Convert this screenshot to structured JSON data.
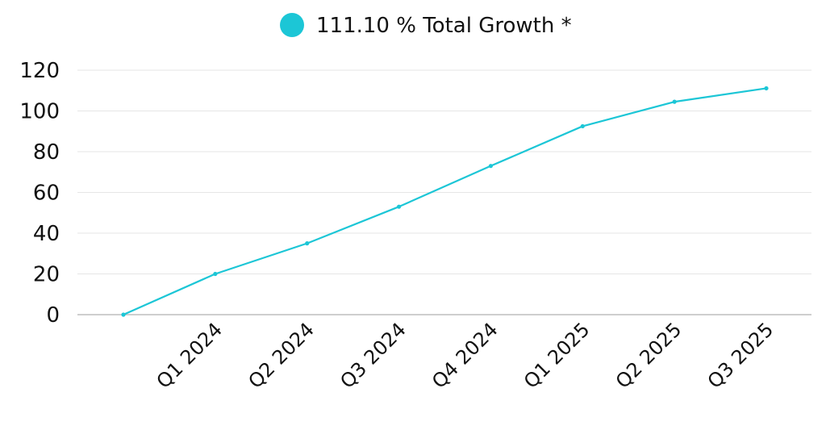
{
  "legend": {
    "label": "111.10 % Total Growth *",
    "position": "top-center"
  },
  "colors": {
    "series": "#1cc6d6",
    "grid": "#e6e6e6",
    "axis": "#bdbdbd",
    "text": "#111111"
  },
  "chart_data": {
    "type": "line",
    "title": "",
    "xlabel": "",
    "ylabel": "",
    "x": [
      "",
      "Q1 2024",
      "Q2 2024",
      "Q3 2024",
      "Q4 2024",
      "Q1 2025",
      "Q2 2025",
      "Q3 2025"
    ],
    "y_ticks": [
      0,
      20,
      40,
      60,
      80,
      100,
      120
    ],
    "ylim": [
      0,
      120
    ],
    "grid": true,
    "series": [
      {
        "name": "111.10 % Total Growth *",
        "values": [
          0,
          20,
          35,
          53,
          73,
          92.5,
          104.5,
          111.1
        ]
      }
    ]
  }
}
